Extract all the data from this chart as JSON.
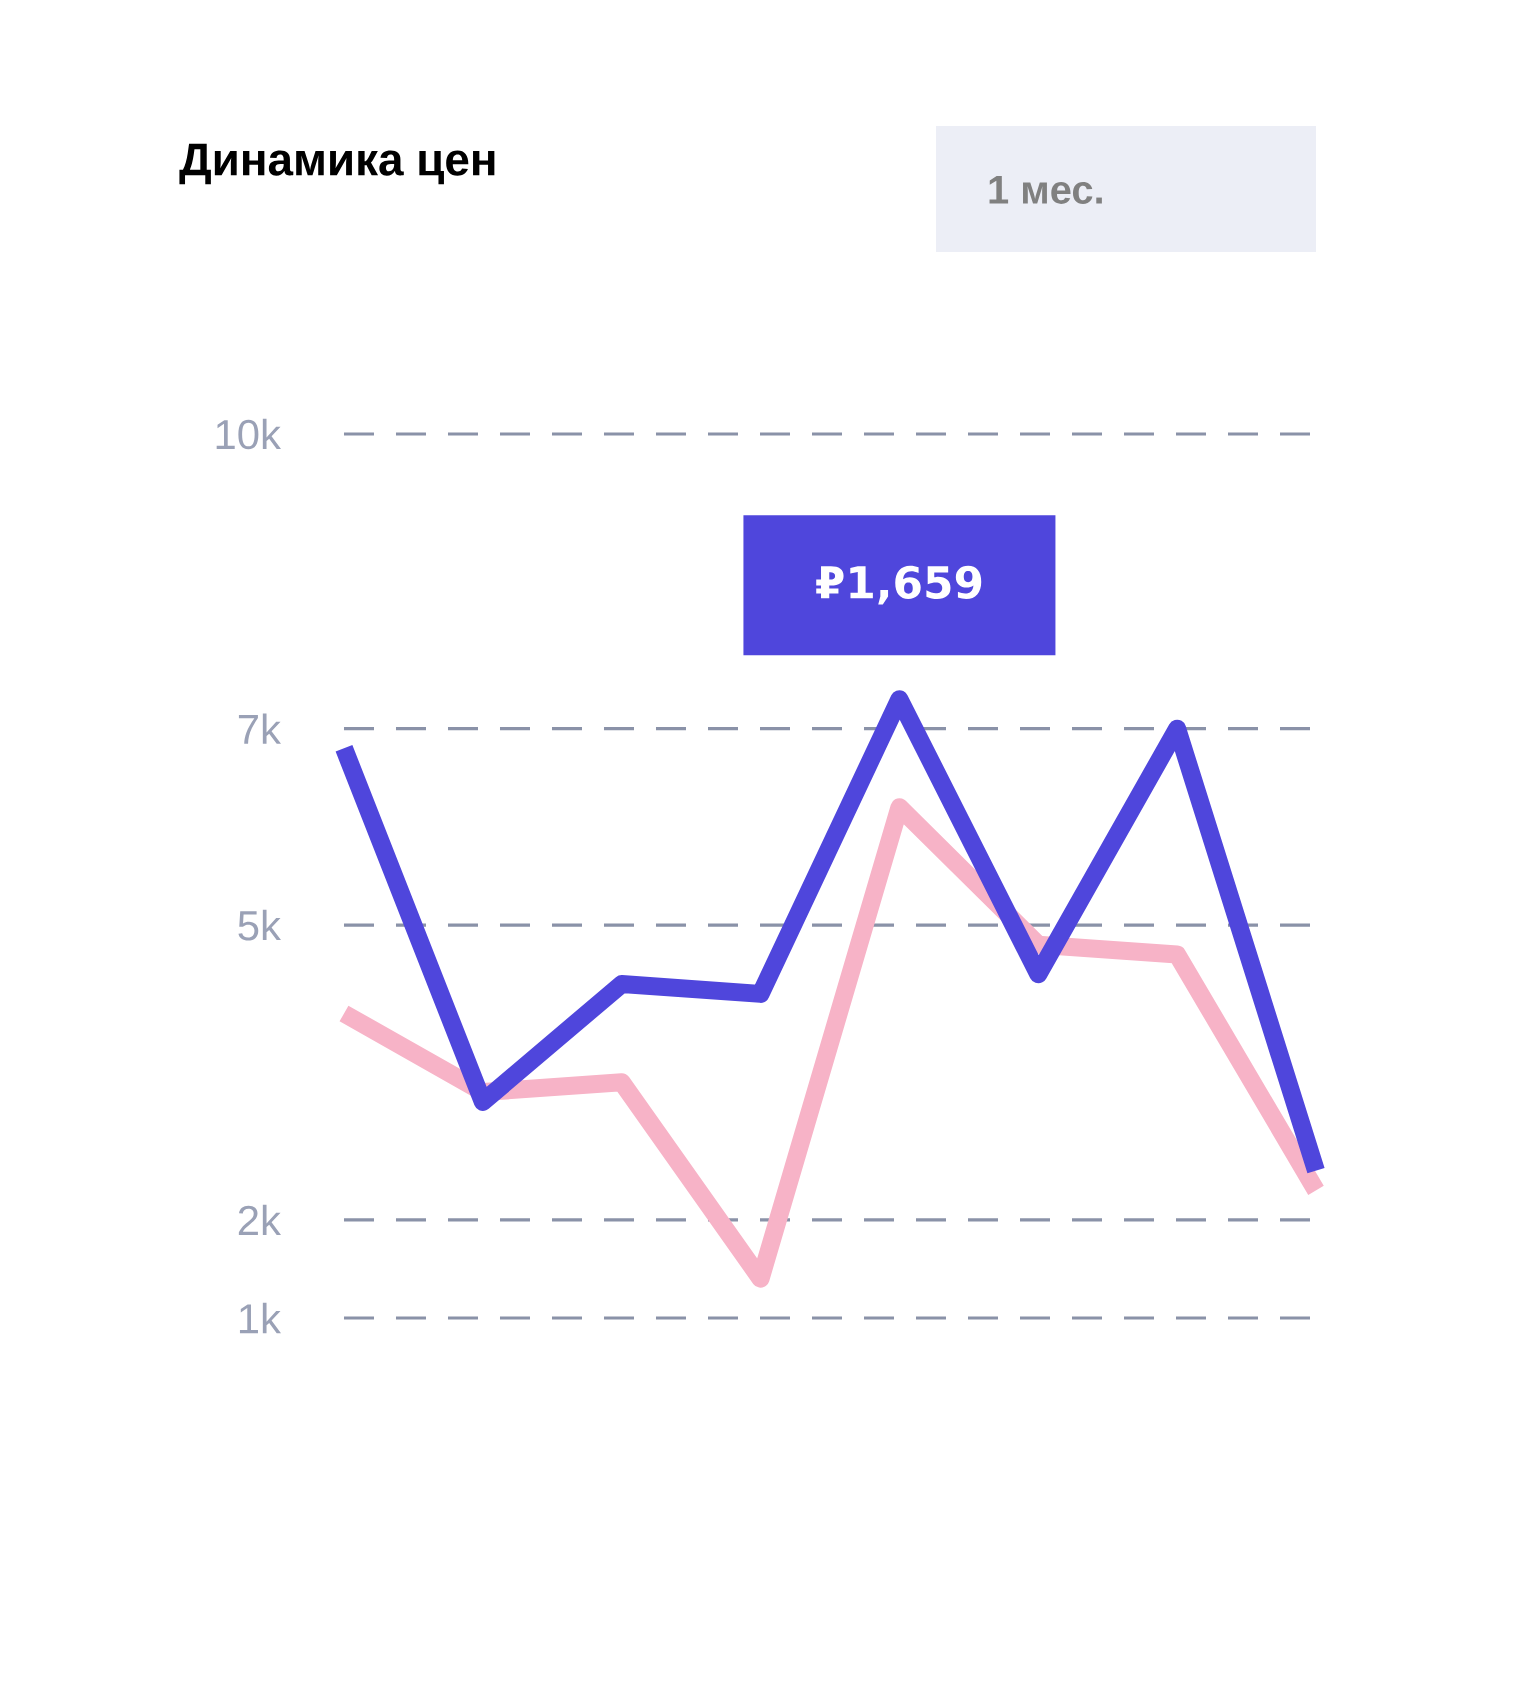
{
  "chart_data": {
    "type": "line",
    "title": "Динамика цен",
    "annotations": [
      "1 мес.",
      {
        "text": "₽1,659",
        "y": 7300
      }
    ],
    "categories": [
      null,
      null,
      null,
      null,
      null,
      null,
      null,
      null
    ],
    "series": [
      {
        "color": "#4f46dc",
        "values": [
          6800,
          3200,
          4400,
          4300,
          7300,
          4500,
          7000,
          2500
        ]
      },
      {
        "color": "#f7b3c7",
        "values": [
          4100,
          3300,
          3400,
          1400,
          6200,
          4800,
          4700,
          2300
        ]
      }
    ],
    "ylim": [
      1000,
      10000
    ],
    "yticks": [
      {
        "value": 1000,
        "label": "1k"
      },
      {
        "value": 2000,
        "label": "2k"
      },
      {
        "value": 5000,
        "label": "5k"
      },
      {
        "value": 7000,
        "label": "7k"
      },
      {
        "value": 10000,
        "label": "10k"
      }
    ],
    "grid": "y"
  }
}
